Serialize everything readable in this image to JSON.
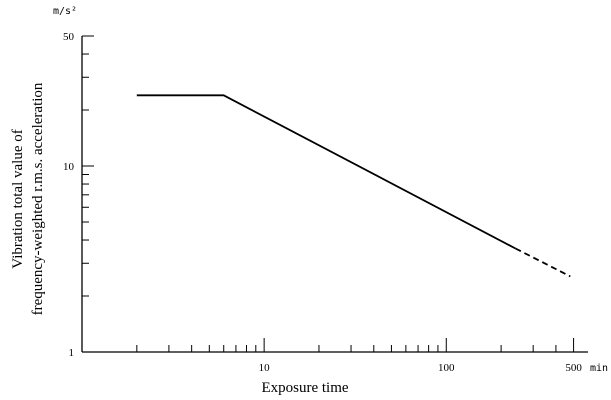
{
  "chart_data": {
    "type": "line",
    "xlabel": "Exposure time",
    "ylabel_line1": "Vibration total value of",
    "ylabel_line2": "frequency-weighted r.m.s. acceleration",
    "x_unit": "min",
    "y_unit": "m/s²",
    "x_scale": "log",
    "y_scale": "log",
    "xlim": [
      1,
      600
    ],
    "ylim": [
      1,
      50
    ],
    "x_tick_labels": [
      {
        "value": 10,
        "label": "10"
      },
      {
        "value": 100,
        "label": "100"
      },
      {
        "value": 500,
        "label": "500"
      }
    ],
    "y_tick_labels": [
      {
        "value": 1,
        "label": "1"
      },
      {
        "value": 10,
        "label": "10"
      },
      {
        "value": 50,
        "label": "50"
      }
    ],
    "x_minor_ticks": [
      2,
      3,
      4,
      5,
      6,
      7,
      8,
      9,
      20,
      30,
      40,
      50,
      60,
      70,
      80,
      90,
      200,
      300,
      400,
      500
    ],
    "y_minor_ticks": [
      2,
      3,
      4,
      5,
      6,
      7,
      8,
      9,
      20,
      30,
      40,
      50
    ],
    "grid": false,
    "series": [
      {
        "style": "solid",
        "color": "#000000",
        "x": [
          2,
          6,
          240
        ],
        "y": [
          24,
          24,
          3.6
        ]
      },
      {
        "style": "dashed",
        "color": "#000000",
        "x": [
          240,
          480
        ],
        "y": [
          3.6,
          2.55
        ]
      }
    ]
  }
}
